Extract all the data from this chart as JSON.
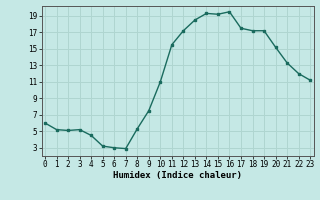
{
  "x": [
    0,
    1,
    2,
    3,
    4,
    5,
    6,
    7,
    8,
    9,
    10,
    11,
    12,
    13,
    14,
    15,
    16,
    17,
    18,
    19,
    20,
    21,
    22,
    23
  ],
  "y": [
    6.0,
    5.2,
    5.1,
    5.2,
    4.5,
    3.2,
    3.0,
    2.9,
    5.3,
    7.5,
    11.0,
    15.5,
    17.2,
    18.5,
    19.3,
    19.2,
    19.5,
    17.5,
    17.2,
    17.2,
    15.2,
    13.3,
    12.0,
    11.2
  ],
  "xlabel": "Humidex (Indice chaleur)",
  "background_color": "#c5e8e5",
  "line_color": "#1a6b5e",
  "grid_color": "#afd5d0",
  "yticks": [
    3,
    5,
    7,
    9,
    11,
    13,
    15,
    17,
    19
  ],
  "xticks": [
    0,
    1,
    2,
    3,
    4,
    5,
    6,
    7,
    8,
    9,
    10,
    11,
    12,
    13,
    14,
    15,
    16,
    17,
    18,
    19,
    20,
    21,
    22,
    23
  ],
  "xlim": [
    -0.3,
    23.3
  ],
  "ylim": [
    2.0,
    20.2
  ]
}
